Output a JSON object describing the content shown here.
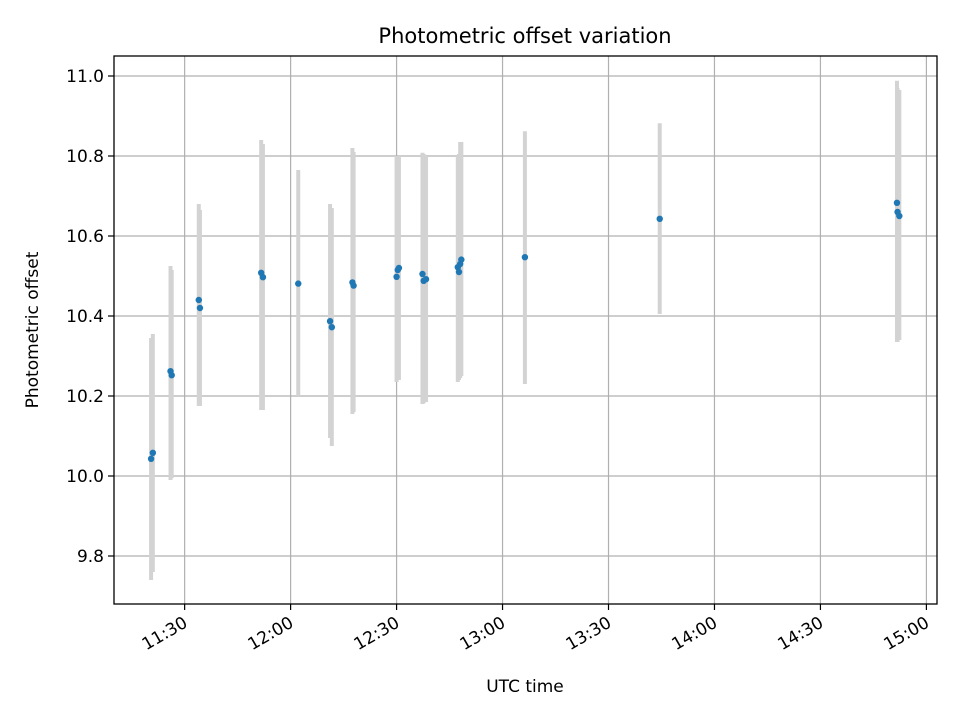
{
  "chart_data": {
    "type": "scatter",
    "title": "Photometric offset variation",
    "xlabel": "UTC time",
    "ylabel": "Photometric offset",
    "grid": true,
    "xlim": [
      "11:10",
      "15:03"
    ],
    "ylim": [
      9.68,
      11.05
    ],
    "x_ticks": [
      "11:30",
      "12:00",
      "12:30",
      "13:00",
      "13:30",
      "14:00",
      "14:30",
      "15:00"
    ],
    "y_ticks": [
      "9.8",
      "10.0",
      "10.2",
      "10.4",
      "10.6",
      "10.8",
      "11.0"
    ],
    "colors": {
      "point": "#1f77b4",
      "error_bar": "#d3d3d3",
      "grid": "#b0b0b0"
    },
    "points": [
      {
        "x": "11:20:30",
        "y": 10.043,
        "err_low": 9.74,
        "err_high": 10.345
      },
      {
        "x": "11:21:00",
        "y": 10.058,
        "err_low": 9.76,
        "err_high": 10.355
      },
      {
        "x": "11:26:00",
        "y": 10.262,
        "err_low": 9.99,
        "err_high": 10.525
      },
      {
        "x": "11:26:20",
        "y": 10.252,
        "err_low": 9.995,
        "err_high": 10.515
      },
      {
        "x": "11:34:00",
        "y": 10.44,
        "err_low": 10.175,
        "err_high": 10.68
      },
      {
        "x": "11:34:20",
        "y": 10.42,
        "err_low": 10.175,
        "err_high": 10.665
      },
      {
        "x": "11:51:40",
        "y": 10.508,
        "err_low": 10.165,
        "err_high": 10.84
      },
      {
        "x": "11:52:10",
        "y": 10.497,
        "err_low": 10.165,
        "err_high": 10.83
      },
      {
        "x": "12:02:10",
        "y": 10.481,
        "err_low": 10.2,
        "err_high": 10.765
      },
      {
        "x": "12:11:10",
        "y": 10.387,
        "err_low": 10.095,
        "err_high": 10.68
      },
      {
        "x": "12:11:40",
        "y": 10.372,
        "err_low": 10.075,
        "err_high": 10.67
      },
      {
        "x": "12:17:30",
        "y": 10.484,
        "err_low": 10.155,
        "err_high": 10.82
      },
      {
        "x": "12:17:50",
        "y": 10.476,
        "err_low": 10.16,
        "err_high": 10.81
      },
      {
        "x": "12:30:00",
        "y": 10.498,
        "err_low": 10.235,
        "err_high": 10.8
      },
      {
        "x": "12:30:20",
        "y": 10.515,
        "err_low": 10.24,
        "err_high": 10.8
      },
      {
        "x": "12:30:40",
        "y": 10.52,
        "err_low": 10.24,
        "err_high": 10.8
      },
      {
        "x": "12:37:20",
        "y": 10.505,
        "err_low": 10.18,
        "err_high": 10.808
      },
      {
        "x": "12:37:40",
        "y": 10.488,
        "err_low": 10.182,
        "err_high": 10.805
      },
      {
        "x": "12:38:20",
        "y": 10.492,
        "err_low": 10.185,
        "err_high": 10.8
      },
      {
        "x": "12:47:20",
        "y": 10.522,
        "err_low": 10.235,
        "err_high": 10.8
      },
      {
        "x": "12:47:40",
        "y": 10.51,
        "err_low": 10.24,
        "err_high": 10.805
      },
      {
        "x": "12:48:00",
        "y": 10.53,
        "err_low": 10.245,
        "err_high": 10.835
      },
      {
        "x": "12:48:20",
        "y": 10.541,
        "err_low": 10.25,
        "err_high": 10.835
      },
      {
        "x": "13:06:20",
        "y": 10.547,
        "err_low": 10.23,
        "err_high": 10.862
      },
      {
        "x": "13:44:30",
        "y": 10.643,
        "err_low": 10.405,
        "err_high": 10.882
      },
      {
        "x": "14:51:40",
        "y": 10.683,
        "err_low": 10.335,
        "err_high": 10.988
      },
      {
        "x": "14:51:50",
        "y": 10.66,
        "err_low": 10.335,
        "err_high": 10.97
      },
      {
        "x": "14:52:20",
        "y": 10.65,
        "err_low": 10.34,
        "err_high": 10.965
      }
    ]
  }
}
